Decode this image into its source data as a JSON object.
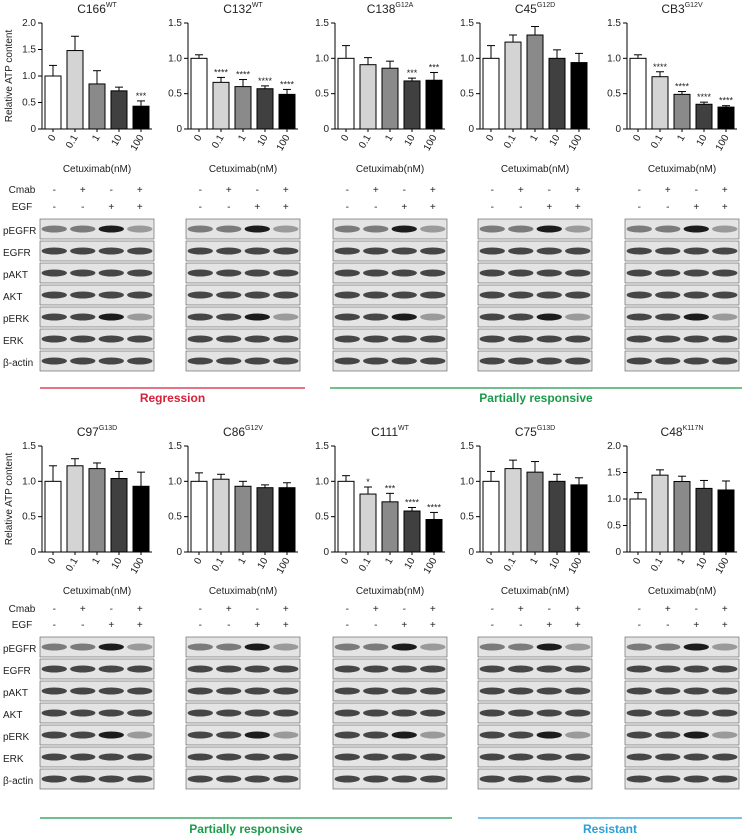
{
  "chart_data": [
    {
      "type": "bar",
      "title": "C166",
      "title_superscript": "WT",
      "y_label": "Relative ATP content",
      "x_label": "Cetuximab(nM)",
      "categories": [
        "0",
        "0.1",
        "1",
        "10",
        "100"
      ],
      "values": [
        1.0,
        1.48,
        0.85,
        0.72,
        0.43
      ],
      "errors": [
        0.2,
        0.27,
        0.25,
        0.07,
        0.1
      ],
      "significance": [
        null,
        null,
        null,
        null,
        "***"
      ],
      "colors": [
        "#ffffff",
        "#d4d4d4",
        "#8a8a8a",
        "#404040",
        "#000000"
      ],
      "ylim": [
        0,
        2
      ],
      "yticks": [
        0,
        0.5,
        {
          "value": 1,
          "label": "1.0"
        },
        1.5,
        {
          "value": 2,
          "label": "2.0"
        }
      ]
    },
    {
      "type": "bar",
      "title": "C132",
      "title_superscript": "WT",
      "x_label": "Cetuximab(nM)",
      "categories": [
        "0",
        "0.1",
        "1",
        "10",
        "100"
      ],
      "values": [
        1.0,
        0.66,
        0.6,
        0.57,
        0.49
      ],
      "errors": [
        0.05,
        0.07,
        0.1,
        0.04,
        0.07
      ],
      "significance": [
        null,
        "****",
        "****",
        "****",
        "****"
      ],
      "colors": [
        "#ffffff",
        "#d4d4d4",
        "#8a8a8a",
        "#404040",
        "#000000"
      ],
      "ylim": [
        0,
        1.5
      ],
      "yticks": [
        0,
        0.5,
        {
          "value": 1,
          "label": "1.0"
        },
        1.5
      ]
    },
    {
      "type": "bar",
      "title": "C138",
      "title_superscript": "G12A",
      "x_label": "Cetuximab(nM)",
      "categories": [
        "0",
        "0.1",
        "1",
        "10",
        "100"
      ],
      "values": [
        1.0,
        0.91,
        0.86,
        0.68,
        0.69
      ],
      "errors": [
        0.18,
        0.1,
        0.1,
        0.04,
        0.11
      ],
      "significance": [
        null,
        null,
        null,
        "***",
        "***"
      ],
      "colors": [
        "#ffffff",
        "#d4d4d4",
        "#8a8a8a",
        "#404040",
        "#000000"
      ],
      "ylim": [
        0,
        1.5
      ],
      "yticks": [
        0,
        0.5,
        {
          "value": 1,
          "label": "1.0"
        },
        1.5
      ]
    },
    {
      "type": "bar",
      "title": "C45",
      "title_superscript": "G12D",
      "x_label": "Cetuximab(nM)",
      "categories": [
        "0",
        "0.1",
        "1",
        "10",
        "100"
      ],
      "values": [
        1.0,
        1.23,
        1.33,
        1.0,
        0.94
      ],
      "errors": [
        0.18,
        0.1,
        0.12,
        0.12,
        0.13
      ],
      "significance": [
        null,
        null,
        null,
        null,
        null
      ],
      "colors": [
        "#ffffff",
        "#d4d4d4",
        "#8a8a8a",
        "#404040",
        "#000000"
      ],
      "ylim": [
        0,
        1.5
      ],
      "yticks": [
        0,
        0.5,
        {
          "value": 1,
          "label": "1.0"
        },
        1.5
      ]
    },
    {
      "type": "bar",
      "title": "CB3",
      "title_superscript": "G12V",
      "x_label": "Cetuximab(nM)",
      "categories": [
        "0",
        "0.1",
        "1",
        "10",
        "100"
      ],
      "values": [
        1.0,
        0.74,
        0.49,
        0.35,
        0.31
      ],
      "errors": [
        0.05,
        0.07,
        0.04,
        0.03,
        0.02
      ],
      "significance": [
        null,
        "****",
        "****",
        "****",
        "****"
      ],
      "colors": [
        "#ffffff",
        "#d4d4d4",
        "#8a8a8a",
        "#404040",
        "#000000"
      ],
      "ylim": [
        0,
        1.5
      ],
      "yticks": [
        0,
        0.5,
        {
          "value": 1,
          "label": "1.0"
        },
        1.5
      ]
    },
    {
      "type": "bar",
      "title": "C97",
      "title_superscript": "G13D",
      "y_label": "Relative ATP content",
      "x_label": "Cetuximab(nM)",
      "categories": [
        "0",
        "0.1",
        "1",
        "10",
        "100"
      ],
      "values": [
        1.0,
        1.22,
        1.18,
        1.04,
        0.93
      ],
      "errors": [
        0.22,
        0.1,
        0.08,
        0.1,
        0.2
      ],
      "significance": [
        null,
        null,
        null,
        null,
        null
      ],
      "colors": [
        "#ffffff",
        "#d4d4d4",
        "#8a8a8a",
        "#404040",
        "#000000"
      ],
      "ylim": [
        0,
        1.5
      ],
      "yticks": [
        0,
        0.5,
        {
          "value": 1,
          "label": "1.0"
        },
        1.5
      ]
    },
    {
      "type": "bar",
      "title": "C86",
      "title_superscript": "G12V",
      "x_label": "Cetuximab(nM)",
      "categories": [
        "0",
        "0.1",
        "1",
        "10",
        "100"
      ],
      "values": [
        1.0,
        1.03,
        0.93,
        0.91,
        0.91
      ],
      "errors": [
        0.12,
        0.07,
        0.07,
        0.04,
        0.07
      ],
      "significance": [
        null,
        null,
        null,
        null,
        null
      ],
      "colors": [
        "#ffffff",
        "#d4d4d4",
        "#8a8a8a",
        "#404040",
        "#000000"
      ],
      "ylim": [
        0,
        1.5
      ],
      "yticks": [
        0,
        0.5,
        {
          "value": 1,
          "label": "1.0"
        },
        1.5
      ]
    },
    {
      "type": "bar",
      "title": "C111",
      "title_superscript": "WT",
      "x_label": "Cetuximab(nM)",
      "categories": [
        "0",
        "0.1",
        "1",
        "10",
        "100"
      ],
      "values": [
        1.0,
        0.82,
        0.71,
        0.58,
        0.46
      ],
      "errors": [
        0.08,
        0.1,
        0.12,
        0.05,
        0.1
      ],
      "significance": [
        null,
        "*",
        "***",
        "****",
        "****"
      ],
      "colors": [
        "#ffffff",
        "#d4d4d4",
        "#8a8a8a",
        "#404040",
        "#000000"
      ],
      "ylim": [
        0,
        1.5
      ],
      "yticks": [
        0,
        0.5,
        {
          "value": 1,
          "label": "1.0"
        },
        1.5
      ]
    },
    {
      "type": "bar",
      "title": "C75",
      "title_superscript": "G13D",
      "x_label": "Cetuximab(nM)",
      "categories": [
        "0",
        "0.1",
        "1",
        "10",
        "100"
      ],
      "values": [
        1.0,
        1.18,
        1.13,
        1.0,
        0.95
      ],
      "errors": [
        0.14,
        0.12,
        0.15,
        0.1,
        0.1
      ],
      "significance": [
        null,
        null,
        null,
        null,
        null
      ],
      "colors": [
        "#ffffff",
        "#d4d4d4",
        "#8a8a8a",
        "#404040",
        "#000000"
      ],
      "ylim": [
        0,
        1.5
      ],
      "yticks": [
        0,
        0.5,
        {
          "value": 1,
          "label": "1.0"
        },
        1.5
      ]
    },
    {
      "type": "bar",
      "title": "C48",
      "title_superscript": "K117N",
      "x_label": "Cetuximab(nM)",
      "categories": [
        "0",
        "0.1",
        "1",
        "10",
        "100"
      ],
      "values": [
        1.0,
        1.45,
        1.33,
        1.2,
        1.17
      ],
      "errors": [
        0.12,
        0.1,
        0.1,
        0.15,
        0.17
      ],
      "significance": [
        null,
        null,
        null,
        null,
        null
      ],
      "colors": [
        "#ffffff",
        "#d4d4d4",
        "#8a8a8a",
        "#404040",
        "#000000"
      ],
      "ylim": [
        0,
        2
      ],
      "yticks": [
        0,
        0.5,
        {
          "value": 1,
          "label": "1.0"
        },
        1.5,
        {
          "value": 2,
          "label": "2.0"
        }
      ]
    }
  ],
  "blots": {
    "treatments": [
      {
        "name": "Cmab",
        "signs": [
          "-",
          "+",
          "-",
          "+"
        ]
      },
      {
        "name": "EGF",
        "signs": [
          "-",
          "-",
          "+",
          "+"
        ]
      }
    ],
    "rows": [
      "pEGFR",
      "EGFR",
      "pAKT",
      "AKT",
      "pERK",
      "ERK",
      "β-actin"
    ]
  },
  "groups": [
    {
      "label": "Regression",
      "color": "#d6213a"
    },
    {
      "label": "Partially responsive",
      "color": "#1a9a4a"
    },
    {
      "label": "Partially responsive",
      "color": "#1a9a4a"
    },
    {
      "label": "Resistant",
      "color": "#2a9fd6"
    }
  ]
}
